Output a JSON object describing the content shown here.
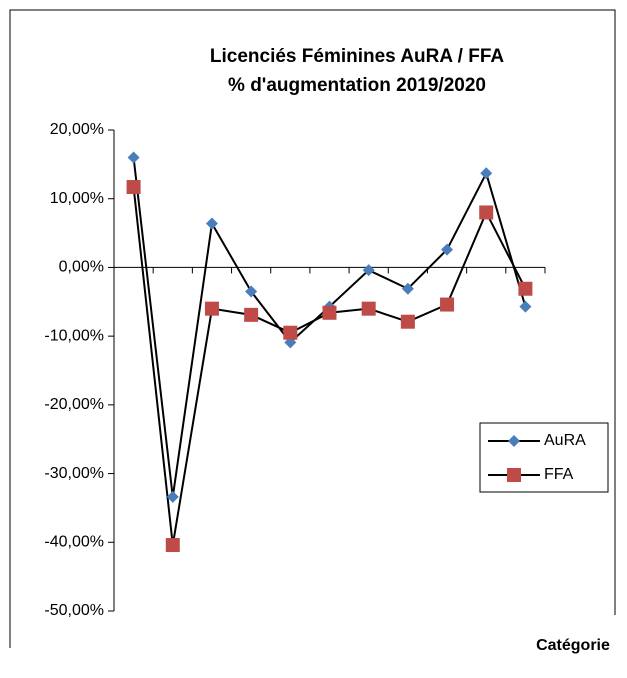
{
  "chart_data": {
    "type": "line",
    "title": "Licenciés Féminines AuRA / FFA",
    "subtitle": "% d'augmentation 2019/2020",
    "x_label": "Catégorie",
    "categories": [
      null,
      null,
      null,
      null,
      null,
      null,
      null,
      null,
      null,
      null,
      null
    ],
    "series": [
      {
        "name": "AuRA",
        "color": "#4a7ebb",
        "marker": "diamond",
        "values": [
          16.0,
          -33.4,
          6.4,
          -3.5,
          -10.9,
          -5.7,
          -0.4,
          -3.1,
          2.6,
          13.7,
          -5.7
        ]
      },
      {
        "name": "FFA",
        "color": "#be4b48",
        "marker": "square",
        "values": [
          11.7,
          -40.4,
          -6.0,
          -6.9,
          -9.5,
          -6.6,
          -6.0,
          -7.9,
          -5.4,
          8.0,
          -3.1
        ]
      }
    ],
    "ylim": [
      -50,
      20
    ],
    "yticks": [
      {
        "value": -50,
        "label": "-50,00%"
      },
      {
        "value": -40,
        "label": "-40,00%"
      },
      {
        "value": -30,
        "label": "-30,00%"
      },
      {
        "value": -20,
        "label": "-20,00%"
      },
      {
        "value": -10,
        "label": "-10,00%"
      },
      {
        "value": 0,
        "label": "0,00%"
      },
      {
        "value": 10,
        "label": "10,00%"
      },
      {
        "value": 20,
        "label": "20,00%"
      }
    ],
    "grid": false,
    "legend": "right"
  }
}
